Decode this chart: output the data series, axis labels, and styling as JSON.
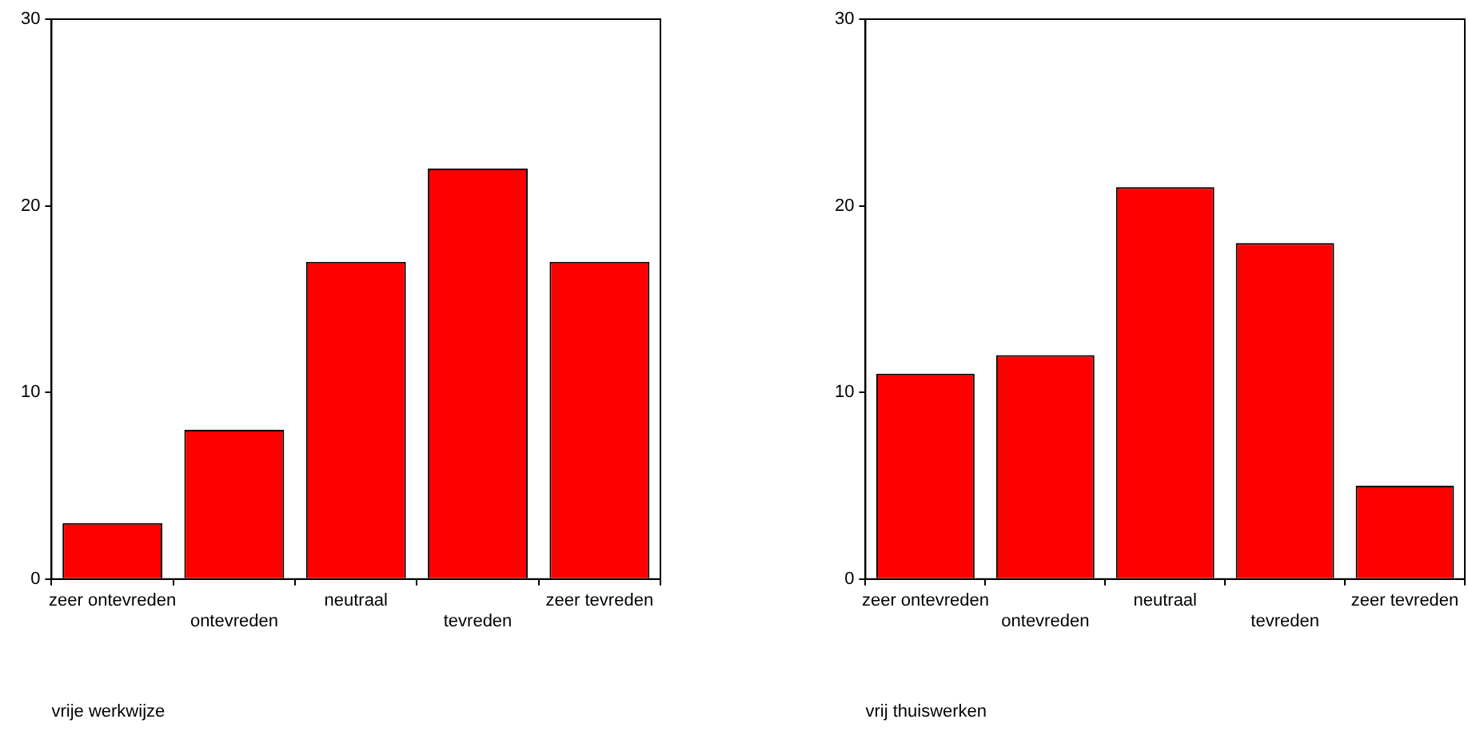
{
  "chart_data": [
    {
      "type": "bar",
      "xlabel": "vrije werkwijze",
      "categories": [
        "zeer ontevreden",
        "ontevreden",
        "neutraal",
        "tevreden",
        "zeer tevreden"
      ],
      "values": [
        3,
        8,
        17,
        22,
        17
      ],
      "color": "#ff0000",
      "ylim": [
        0,
        30
      ],
      "yticks": [
        0,
        10,
        20,
        30
      ],
      "grid": false,
      "legend": false
    },
    {
      "type": "bar",
      "xlabel": "vrij thuiswerken",
      "categories": [
        "zeer ontevreden",
        "ontevreden",
        "neutraal",
        "tevreden",
        "zeer tevreden"
      ],
      "values": [
        11,
        12,
        21,
        18,
        5
      ],
      "color": "#ff0000",
      "ylim": [
        0,
        30
      ],
      "yticks": [
        0,
        10,
        20,
        30
      ],
      "grid": false,
      "legend": false
    }
  ]
}
